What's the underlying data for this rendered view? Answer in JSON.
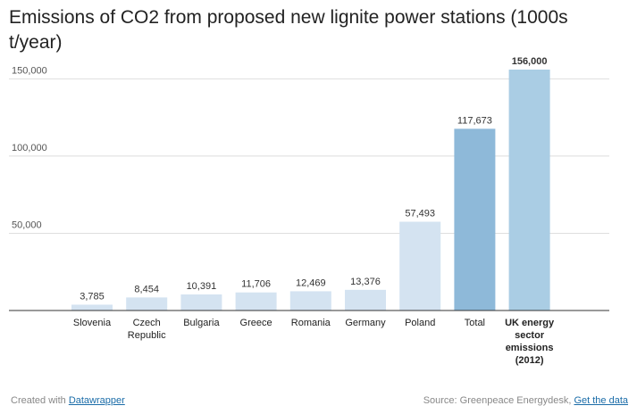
{
  "chart_data": {
    "type": "bar",
    "title": "Emissions of CO2 from proposed new lignite power stations (1000s t/year)",
    "categories": [
      "Slovenia",
      "Czech Republic",
      "Bulgaria",
      "Greece",
      "Romania",
      "Germany",
      "Poland",
      "Total",
      "UK energy sector emissions (2012)"
    ],
    "category_lines": [
      [
        "Slovenia"
      ],
      [
        "Czech",
        "Republic"
      ],
      [
        "Bulgaria"
      ],
      [
        "Greece"
      ],
      [
        "Romania"
      ],
      [
        "Germany"
      ],
      [
        "Poland"
      ],
      [
        "Total"
      ],
      [
        "UK energy",
        "sector",
        "emissions",
        "(2012)"
      ]
    ],
    "values": [
      3785,
      8454,
      10391,
      11706,
      12469,
      13376,
      57493,
      117673,
      156000
    ],
    "value_labels": [
      "3,785",
      "8,454",
      "10,391",
      "11,706",
      "12,469",
      "13,376",
      "57,493",
      "117,673",
      "156,000"
    ],
    "bold": [
      false,
      false,
      false,
      false,
      false,
      false,
      false,
      false,
      true
    ],
    "colors": [
      "#d4e3f1",
      "#d4e3f1",
      "#d4e3f1",
      "#d4e3f1",
      "#d4e3f1",
      "#d4e3f1",
      "#d4e3f1",
      "#8eb9d9",
      "#aacde4"
    ],
    "yticks": [
      50000,
      100000,
      150000
    ],
    "ytick_labels": [
      "50,000",
      "100,000",
      "150,000"
    ],
    "ylim": [
      0,
      156000
    ],
    "grid": true
  },
  "footer": {
    "created_prefix": "Created with ",
    "created_link": "Datawrapper",
    "source_prefix": "Source: Greenpeace Energydesk, ",
    "source_link": "Get the data"
  }
}
